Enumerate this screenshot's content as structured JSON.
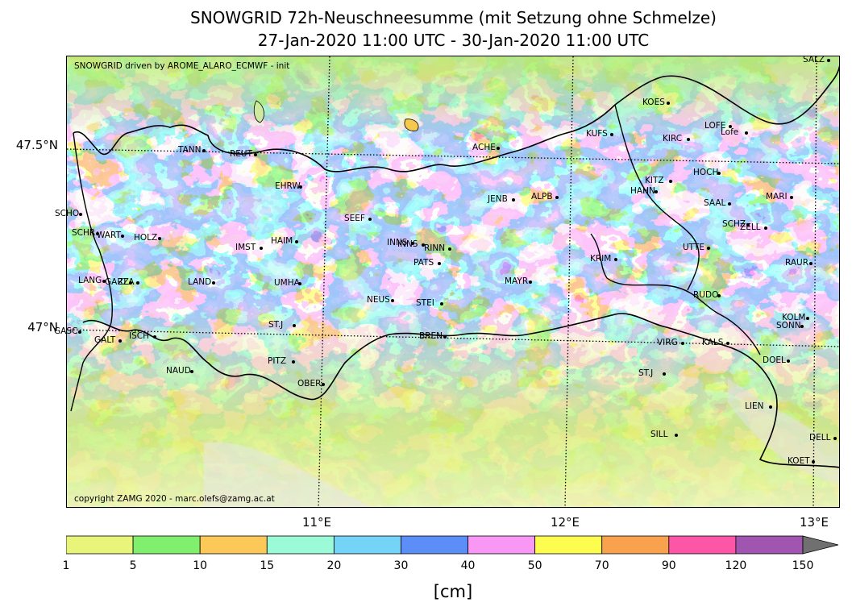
{
  "title_line1": "SNOWGRID 72h-Neuschneesumme (mit Setzung ohne Schmelze)",
  "title_line2": "27-Jan-2020 11:00 UTC - 30-Jan-2020 11:00 UTC",
  "model_note": "SNOWGRID driven by AROME_ALARO_ECMWF - init",
  "copyright": "copyright ZAMG 2020 - marc.olefs@zamg.ac.at",
  "lat_labels": [
    "47.5°N",
    "47°N"
  ],
  "lon_labels": [
    "11°E",
    "12°E",
    "13°E"
  ],
  "colorbar": {
    "unit": "[cm]",
    "ticks": [
      "1",
      "5",
      "10",
      "15",
      "20",
      "30",
      "40",
      "50",
      "70",
      "90",
      "120",
      "150"
    ],
    "colors": [
      "#e8f57a",
      "#80ef6d",
      "#fcc858",
      "#9bfbd8",
      "#75d3f8",
      "#5b8ff7",
      "#f898f4",
      "#fdfd4f",
      "#f8a24e",
      "#fc56a6",
      "#a055b0"
    ],
    "extend_color": "#707070"
  },
  "stations": [
    {
      "name": "SALZ"
    },
    {
      "name": "KOES"
    },
    {
      "name": "KUFS"
    },
    {
      "name": "KIRC"
    },
    {
      "name": "LOFE"
    },
    {
      "name": "Lofe"
    },
    {
      "name": "TANN"
    },
    {
      "name": "REUT"
    },
    {
      "name": "ACHE"
    },
    {
      "name": "HOCH"
    },
    {
      "name": "KITZ"
    },
    {
      "name": "HAHN"
    },
    {
      "name": "EHRW"
    },
    {
      "name": "JENB"
    },
    {
      "name": "ALPB"
    },
    {
      "name": "MARI"
    },
    {
      "name": "SAAL"
    },
    {
      "name": "SCHO"
    },
    {
      "name": "SEEF"
    },
    {
      "name": "SCHZ"
    },
    {
      "name": "ZELL"
    },
    {
      "name": "SCHR"
    },
    {
      "name": "WART"
    },
    {
      "name": "HOLZ"
    },
    {
      "name": "HAIM"
    },
    {
      "name": "INNS"
    },
    {
      "name": "INNS"
    },
    {
      "name": "IMST"
    },
    {
      "name": "RINN"
    },
    {
      "name": "UTTE"
    },
    {
      "name": "PATS"
    },
    {
      "name": "KRIM"
    },
    {
      "name": "RAUR"
    },
    {
      "name": "LANG"
    },
    {
      "name": "GARZ"
    },
    {
      "name": "ZLA"
    },
    {
      "name": "LAND"
    },
    {
      "name": "UMHA"
    },
    {
      "name": "MAYR"
    },
    {
      "name": "RUDO"
    },
    {
      "name": "NEUS"
    },
    {
      "name": "STEI"
    },
    {
      "name": "ST.J"
    },
    {
      "name": "KOLM"
    },
    {
      "name": "SONN"
    },
    {
      "name": "GASC"
    },
    {
      "name": "GALT"
    },
    {
      "name": "ISCH"
    },
    {
      "name": "BREN"
    },
    {
      "name": "VIRG"
    },
    {
      "name": "KALS"
    },
    {
      "name": "DOEL"
    },
    {
      "name": "PITZ"
    },
    {
      "name": "NAUD"
    },
    {
      "name": "ST.J"
    },
    {
      "name": "OBER"
    },
    {
      "name": "LIEN"
    },
    {
      "name": "SILL"
    },
    {
      "name": "DELL"
    },
    {
      "name": "KOET"
    }
  ]
}
